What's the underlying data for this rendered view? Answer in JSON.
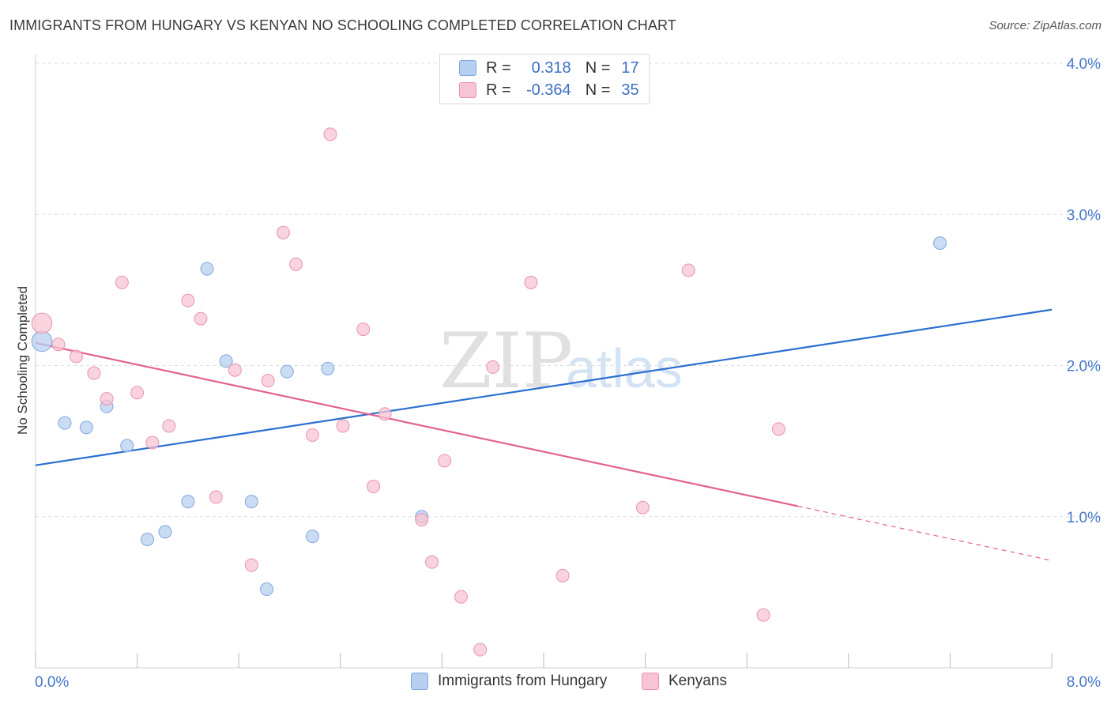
{
  "title": "IMMIGRANTS FROM HUNGARY VS KENYAN NO SCHOOLING COMPLETED CORRELATION CHART",
  "source": "Source: ZipAtlas.com",
  "watermark": {
    "zip": "ZIP",
    "atlas": "atlas"
  },
  "legend": {
    "rows": [
      {
        "r_label": "R =",
        "r_value": "0.318",
        "n_label": "N =",
        "n_value": "17"
      },
      {
        "r_label": "R =",
        "r_value": "-0.364",
        "n_label": "N =",
        "n_value": "35"
      }
    ]
  },
  "bottom_legend": [
    "Immigrants from Hungary",
    "Kenyans"
  ],
  "colors": {
    "blue_fill": "#b8d0f0",
    "blue_stroke": "#7ea7de",
    "blue_line": "#2a6fd0",
    "pink_fill": "#f7c4d3",
    "pink_stroke": "#ea93ad",
    "pink_line": "#e3628f",
    "tick_label": "#4477cc",
    "grid": "#dddddd"
  },
  "chart_data": {
    "type": "scatter",
    "title": "IMMIGRANTS FROM HUNGARY VS KENYAN NO SCHOOLING COMPLETED CORRELATION CHART",
    "xlabel": "",
    "ylabel": "No Schooling Completed",
    "xlim": [
      0,
      8
    ],
    "ylim": [
      0,
      4.1
    ],
    "x_tick_labels": [
      "0.0%",
      "8.0%"
    ],
    "y_ticks": [
      1.0,
      2.0,
      3.0,
      4.0
    ],
    "y_tick_labels": [
      "1.0%",
      "2.0%",
      "3.0%",
      "4.0%"
    ],
    "grid": "horizontal dashed",
    "series": [
      {
        "name": "Immigrants from Hungary",
        "color": "#b8d0f0",
        "points": [
          [
            0.05,
            2.16,
            1.6
          ],
          [
            0.23,
            1.62,
            1
          ],
          [
            0.4,
            1.59,
            1
          ],
          [
            0.56,
            1.73,
            1
          ],
          [
            0.72,
            1.47,
            1
          ],
          [
            0.88,
            0.85,
            1
          ],
          [
            1.02,
            0.9,
            1
          ],
          [
            1.2,
            1.1,
            1
          ],
          [
            1.35,
            2.64,
            1
          ],
          [
            1.5,
            2.03,
            1
          ],
          [
            1.7,
            1.1,
            1
          ],
          [
            1.82,
            0.52,
            1
          ],
          [
            1.98,
            1.96,
            1
          ],
          [
            2.18,
            0.87,
            1
          ],
          [
            2.3,
            1.98,
            1
          ],
          [
            3.04,
            1.0,
            1
          ],
          [
            7.12,
            2.81,
            1
          ]
        ],
        "trend": {
          "x": [
            0,
            8
          ],
          "y": [
            1.34,
            2.37
          ],
          "dashed_from": null
        }
      },
      {
        "name": "Kenyans",
        "color": "#f7c4d3",
        "points": [
          [
            0.05,
            2.28,
            1.6
          ],
          [
            0.18,
            2.14,
            1
          ],
          [
            0.32,
            2.06,
            1
          ],
          [
            0.46,
            1.95,
            1
          ],
          [
            0.56,
            1.78,
            1
          ],
          [
            0.68,
            2.55,
            1
          ],
          [
            0.8,
            1.82,
            1
          ],
          [
            0.92,
            1.49,
            1
          ],
          [
            1.05,
            1.6,
            1
          ],
          [
            1.2,
            2.43,
            1
          ],
          [
            1.3,
            2.31,
            1
          ],
          [
            1.42,
            1.13,
            1
          ],
          [
            1.57,
            1.97,
            1
          ],
          [
            1.7,
            0.68,
            1
          ],
          [
            1.83,
            1.9,
            1
          ],
          [
            1.95,
            2.88,
            1
          ],
          [
            2.05,
            2.67,
            1
          ],
          [
            2.18,
            1.54,
            1
          ],
          [
            2.32,
            3.53,
            1
          ],
          [
            2.42,
            1.6,
            1
          ],
          [
            2.58,
            2.24,
            1
          ],
          [
            2.66,
            1.2,
            1
          ],
          [
            2.75,
            1.68,
            1
          ],
          [
            3.04,
            0.98,
            1
          ],
          [
            3.12,
            0.7,
            1
          ],
          [
            3.22,
            1.37,
            1
          ],
          [
            3.35,
            0.47,
            1
          ],
          [
            3.5,
            0.12,
            1
          ],
          [
            3.6,
            1.99,
            1
          ],
          [
            3.9,
            2.55,
            1
          ],
          [
            4.15,
            0.61,
            1
          ],
          [
            4.78,
            1.06,
            1
          ],
          [
            5.14,
            2.63,
            1
          ],
          [
            5.73,
            0.35,
            1
          ],
          [
            5.85,
            1.58,
            1
          ]
        ],
        "trend": {
          "x": [
            0,
            8
          ],
          "y": [
            2.15,
            0.71
          ],
          "dashed_from": 6.0
        }
      }
    ]
  }
}
